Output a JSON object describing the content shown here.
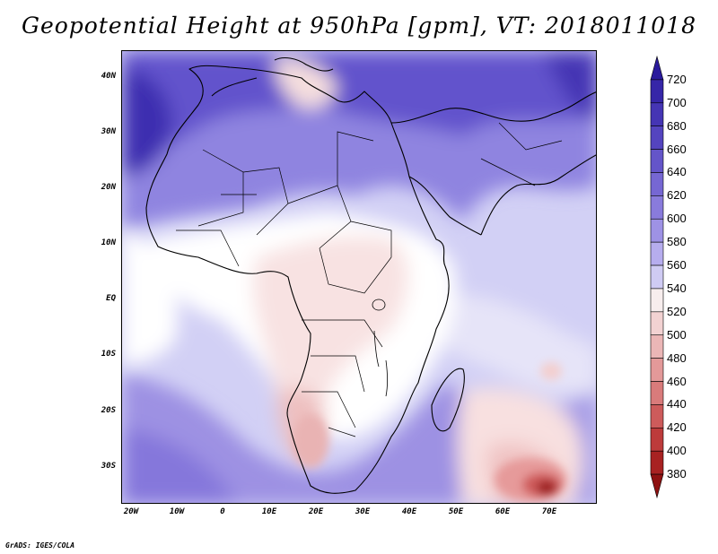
{
  "title": "Geopotential Height at 950hPa [gpm], VT: 2018011018",
  "footer": "GrADS: IGES/COLA",
  "map": {
    "lat_labels": [
      "40N",
      "30N",
      "20N",
      "10N",
      "EQ",
      "10S",
      "20S",
      "30S"
    ],
    "lon_labels": [
      "20W",
      "10W",
      "0",
      "10E",
      "20E",
      "30E",
      "40E",
      "50E",
      "60E",
      "70E"
    ]
  },
  "colorbar": {
    "levels": [
      "720",
      "700",
      "680",
      "660",
      "640",
      "620",
      "600",
      "580",
      "560",
      "540",
      "520",
      "500",
      "480",
      "460",
      "440",
      "420",
      "400",
      "380"
    ],
    "colors": [
      "#2a1a9c",
      "#3626a8",
      "#4535b4",
      "#5444bf",
      "#6455c9",
      "#7667d3",
      "#897bdc",
      "#9e92e5",
      "#b6adee",
      "#cfcbf3",
      "#f7eded",
      "#f2d2d2",
      "#ebb6b6",
      "#e39999",
      "#d97b7b",
      "#cd5b5b",
      "#bd3b3b",
      "#a82222",
      "#8e1212"
    ]
  }
}
